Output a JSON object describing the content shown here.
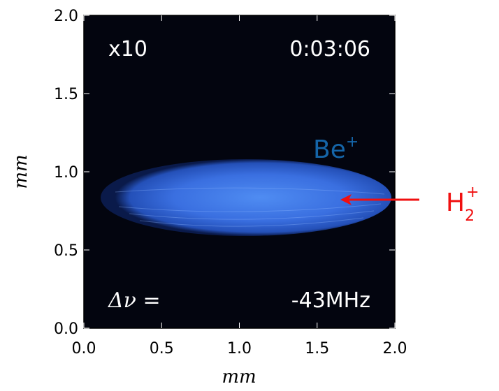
{
  "chart_data": {
    "type": "image",
    "xlabel": "mm",
    "ylabel": "mm",
    "xlim": [
      0,
      2
    ],
    "ylim": [
      0,
      2
    ],
    "xticks": [
      {
        "value": 0,
        "label": "0.0"
      },
      {
        "value": 0.5,
        "label": "0.5"
      },
      {
        "value": 1,
        "label": "1.0"
      },
      {
        "value": 1.5,
        "label": "1.5"
      },
      {
        "value": 2,
        "label": "2.0"
      }
    ],
    "yticks": [
      {
        "value": 0,
        "label": "0.0"
      },
      {
        "value": 0.5,
        "label": "0.5"
      },
      {
        "value": 1,
        "label": "1.0"
      },
      {
        "value": 1.5,
        "label": "1.5"
      },
      {
        "value": 2,
        "label": "2.0"
      }
    ],
    "annotations": [
      {
        "text": "x10"
      },
      {
        "text": "0:03:06"
      },
      {
        "text": "Δν ="
      },
      {
        "text": "-43MHz"
      }
    ],
    "ion_label": {
      "text": "Be",
      "superscript": "+"
    },
    "arrow_label": {
      "text": "H",
      "subscript": "2",
      "superscript": "+"
    }
  }
}
